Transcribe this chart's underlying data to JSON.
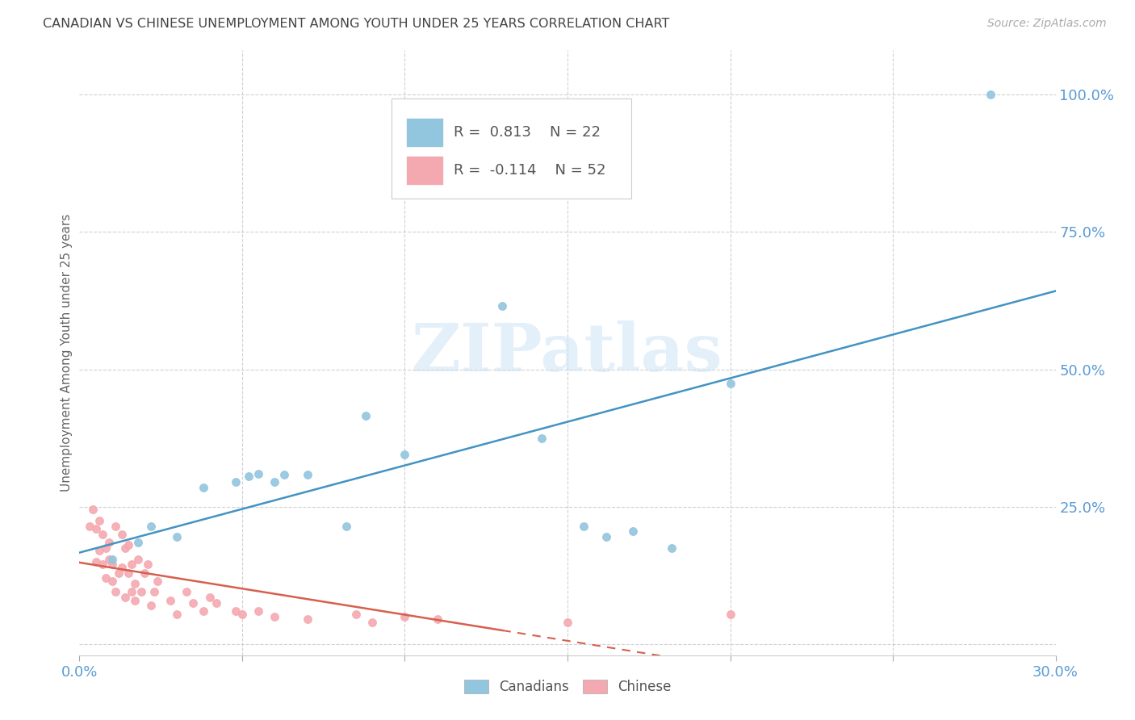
{
  "title": "CANADIAN VS CHINESE UNEMPLOYMENT AMONG YOUTH UNDER 25 YEARS CORRELATION CHART",
  "source": "Source: ZipAtlas.com",
  "ylabel": "Unemployment Among Youth under 25 years",
  "xlim": [
    0.0,
    0.3
  ],
  "ylim": [
    -0.02,
    1.08
  ],
  "xticks": [
    0.0,
    0.05,
    0.1,
    0.15,
    0.2,
    0.25,
    0.3
  ],
  "xticklabels": [
    "0.0%",
    "",
    "",
    "",
    "",
    "",
    "30.0%"
  ],
  "ytick_positions": [
    0.0,
    0.25,
    0.5,
    0.75,
    1.0
  ],
  "ytick_labels": [
    "",
    "25.0%",
    "50.0%",
    "75.0%",
    "100.0%"
  ],
  "canadian_color": "#92c5de",
  "chinese_color": "#f4a9b0",
  "canadian_line_color": "#4393c3",
  "chinese_line_color": "#d6604d",
  "canadian_R": 0.813,
  "canadian_N": 22,
  "chinese_R": -0.114,
  "chinese_N": 52,
  "watermark": "ZIPatlas",
  "canadian_points": [
    [
      0.01,
      0.155
    ],
    [
      0.018,
      0.185
    ],
    [
      0.022,
      0.215
    ],
    [
      0.03,
      0.195
    ],
    [
      0.038,
      0.285
    ],
    [
      0.048,
      0.295
    ],
    [
      0.052,
      0.305
    ],
    [
      0.055,
      0.31
    ],
    [
      0.06,
      0.295
    ],
    [
      0.063,
      0.308
    ],
    [
      0.07,
      0.308
    ],
    [
      0.082,
      0.215
    ],
    [
      0.088,
      0.415
    ],
    [
      0.1,
      0.345
    ],
    [
      0.13,
      0.615
    ],
    [
      0.142,
      0.375
    ],
    [
      0.155,
      0.215
    ],
    [
      0.162,
      0.195
    ],
    [
      0.17,
      0.205
    ],
    [
      0.182,
      0.175
    ],
    [
      0.2,
      0.475
    ],
    [
      0.28,
      1.0
    ]
  ],
  "chinese_points": [
    [
      0.003,
      0.215
    ],
    [
      0.004,
      0.245
    ],
    [
      0.005,
      0.15
    ],
    [
      0.005,
      0.21
    ],
    [
      0.006,
      0.225
    ],
    [
      0.006,
      0.17
    ],
    [
      0.007,
      0.145
    ],
    [
      0.007,
      0.2
    ],
    [
      0.008,
      0.12
    ],
    [
      0.008,
      0.175
    ],
    [
      0.009,
      0.155
    ],
    [
      0.009,
      0.185
    ],
    [
      0.01,
      0.115
    ],
    [
      0.01,
      0.145
    ],
    [
      0.011,
      0.215
    ],
    [
      0.011,
      0.095
    ],
    [
      0.012,
      0.13
    ],
    [
      0.013,
      0.2
    ],
    [
      0.013,
      0.14
    ],
    [
      0.014,
      0.175
    ],
    [
      0.014,
      0.085
    ],
    [
      0.015,
      0.18
    ],
    [
      0.015,
      0.13
    ],
    [
      0.016,
      0.095
    ],
    [
      0.016,
      0.145
    ],
    [
      0.017,
      0.11
    ],
    [
      0.017,
      0.08
    ],
    [
      0.018,
      0.155
    ],
    [
      0.019,
      0.095
    ],
    [
      0.02,
      0.13
    ],
    [
      0.021,
      0.145
    ],
    [
      0.022,
      0.07
    ],
    [
      0.023,
      0.095
    ],
    [
      0.024,
      0.115
    ],
    [
      0.028,
      0.08
    ],
    [
      0.03,
      0.055
    ],
    [
      0.033,
      0.095
    ],
    [
      0.035,
      0.075
    ],
    [
      0.038,
      0.06
    ],
    [
      0.04,
      0.085
    ],
    [
      0.042,
      0.075
    ],
    [
      0.048,
      0.06
    ],
    [
      0.05,
      0.055
    ],
    [
      0.055,
      0.06
    ],
    [
      0.06,
      0.05
    ],
    [
      0.07,
      0.045
    ],
    [
      0.085,
      0.055
    ],
    [
      0.09,
      0.04
    ],
    [
      0.1,
      0.05
    ],
    [
      0.11,
      0.045
    ],
    [
      0.15,
      0.04
    ],
    [
      0.2,
      0.055
    ]
  ],
  "background_color": "#ffffff",
  "grid_color": "#cccccc",
  "title_color": "#444444",
  "axis_color": "#5b9bd5",
  "marker_size": 7
}
